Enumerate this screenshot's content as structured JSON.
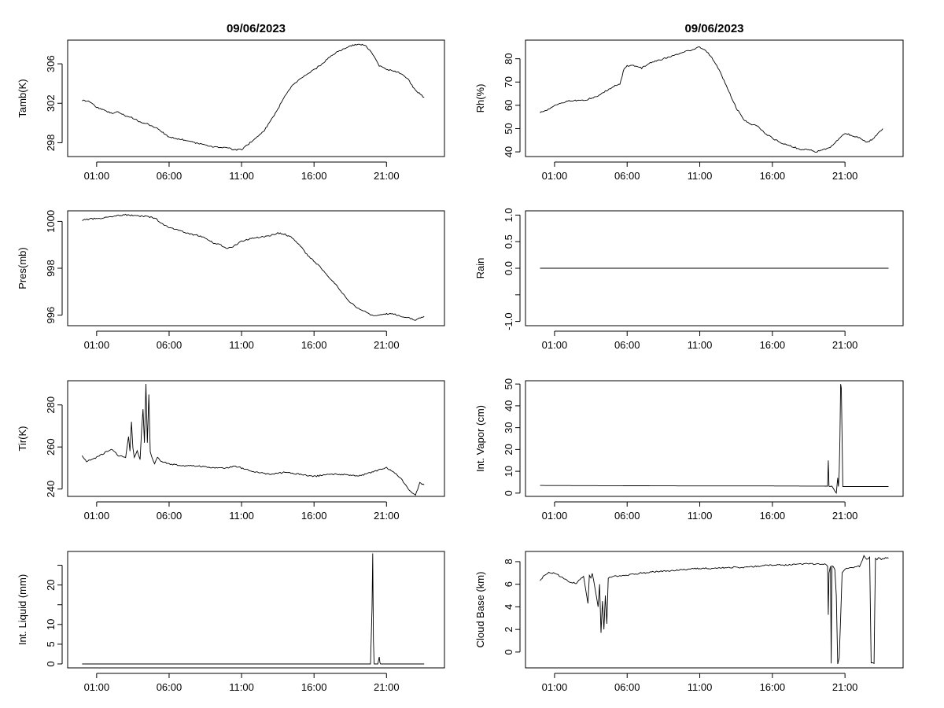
{
  "titles": [
    "09/06/2023",
    "09/06/2023"
  ],
  "x_ticks": [
    "01:00",
    "06:00",
    "11:00",
    "16:00",
    "21:00"
  ],
  "chart_data": [
    {
      "type": "line",
      "id": "tamb",
      "ylabel": "Tamb(K)",
      "ylim": [
        296.6,
        308.4
      ],
      "yticks": [
        298,
        302,
        306
      ],
      "xlim": [
        -1.0,
        25.0
      ],
      "xrange": [
        0.0,
        23.6
      ],
      "series": [
        {
          "x": [
            0.0,
            0.5,
            1.0,
            1.5,
            2.0,
            2.5,
            3.0,
            3.5,
            4.0,
            4.5,
            5.0,
            5.5,
            6.0,
            6.5,
            7.0,
            7.5,
            8.0,
            8.5,
            9.0,
            9.5,
            10.0,
            10.5,
            11.0,
            11.5,
            12.0,
            12.5,
            13.0,
            13.5,
            14.0,
            14.5,
            15.0,
            15.5,
            16.0,
            16.5,
            17.0,
            17.5,
            18.0,
            18.5,
            19.0,
            19.5,
            20.0,
            20.5,
            21.0,
            21.5,
            22.0,
            22.5,
            23.0,
            23.6
          ],
          "y": [
            302.3,
            302.2,
            301.6,
            301.3,
            301.0,
            301.1,
            300.7,
            300.5,
            300.1,
            299.9,
            299.6,
            299.1,
            298.6,
            298.4,
            298.3,
            298.1,
            297.9,
            297.8,
            297.6,
            297.5,
            297.5,
            297.3,
            297.3,
            297.9,
            298.5,
            299.1,
            300.2,
            301.4,
            302.8,
            303.8,
            304.4,
            304.9,
            305.4,
            305.9,
            306.6,
            307.1,
            307.5,
            307.8,
            308.0,
            307.9,
            307.1,
            305.8,
            305.4,
            305.3,
            305.0,
            304.4,
            303.3,
            302.6
          ]
        }
      ]
    },
    {
      "type": "line",
      "id": "rh",
      "ylabel": "Rh(%)",
      "ylim": [
        38,
        88
      ],
      "yticks": [
        40,
        50,
        60,
        70,
        80
      ],
      "xlim": [
        -1.0,
        25.0
      ],
      "xrange": [
        0.0,
        23.6
      ],
      "series": [
        {
          "x": [
            0.0,
            0.5,
            1.0,
            1.5,
            2.0,
            2.5,
            3.0,
            3.5,
            4.0,
            4.5,
            5.0,
            5.5,
            5.8,
            6.0,
            6.5,
            7.0,
            7.5,
            8.0,
            8.5,
            9.0,
            9.5,
            10.0,
            10.5,
            11.0,
            11.5,
            12.0,
            12.5,
            13.0,
            13.5,
            14.0,
            14.5,
            15.0,
            15.5,
            16.0,
            16.5,
            17.0,
            17.5,
            18.0,
            18.5,
            19.0,
            19.5,
            20.0,
            20.5,
            21.0,
            21.5,
            22.0,
            22.5,
            23.0,
            23.6
          ],
          "y": [
            57,
            58,
            60,
            61,
            62,
            62,
            62,
            63,
            64,
            66,
            68,
            69,
            76,
            77,
            77,
            76,
            78,
            79,
            80,
            81,
            82,
            83,
            84,
            85,
            83,
            79,
            73,
            66,
            59,
            54,
            52,
            51,
            48,
            46,
            44,
            43,
            42,
            41,
            41,
            40,
            41,
            42,
            45,
            48,
            47,
            46,
            44,
            46,
            50
          ]
        }
      ]
    },
    {
      "type": "line",
      "id": "pres",
      "ylabel": "Pres(mb)",
      "ylim": [
        995.55,
        1000.45
      ],
      "yticks": [
        996,
        998,
        1000
      ],
      "xlim": [
        -1.0,
        25.0
      ],
      "xrange": [
        0.0,
        23.6
      ],
      "series": [
        {
          "x": [
            0.0,
            0.5,
            1.0,
            1.5,
            2.0,
            2.5,
            3.0,
            3.5,
            4.0,
            4.5,
            5.0,
            5.5,
            6.0,
            6.5,
            7.0,
            7.5,
            8.0,
            8.5,
            9.0,
            9.5,
            10.0,
            10.5,
            11.0,
            11.5,
            12.0,
            12.5,
            13.0,
            13.5,
            14.0,
            14.5,
            15.0,
            15.5,
            16.0,
            16.5,
            17.0,
            17.5,
            18.0,
            18.5,
            19.0,
            19.5,
            20.0,
            20.5,
            21.0,
            21.5,
            22.0,
            22.5,
            23.0,
            23.6
          ],
          "y": [
            1000.05,
            1000.1,
            1000.12,
            1000.15,
            1000.2,
            1000.25,
            1000.28,
            1000.25,
            1000.22,
            1000.2,
            1000.15,
            999.9,
            999.75,
            999.65,
            999.55,
            999.45,
            999.4,
            999.3,
            999.1,
            999.0,
            998.85,
            998.95,
            999.15,
            999.25,
            999.3,
            999.35,
            999.4,
            999.5,
            999.45,
            999.3,
            999.0,
            998.6,
            998.3,
            998.0,
            997.65,
            997.3,
            996.9,
            996.55,
            996.3,
            996.15,
            996.0,
            996.0,
            996.05,
            996.05,
            995.95,
            995.9,
            995.8,
            995.95
          ]
        }
      ]
    },
    {
      "type": "line",
      "id": "rain",
      "ylabel": "Rain",
      "ylim": [
        -1.08,
        1.08
      ],
      "yticks": [
        -1.0,
        -0.5,
        0.0,
        0.5,
        1.0
      ],
      "ytick_labels": [
        "-1.0",
        "",
        "0.0",
        "0.5",
        "1.0"
      ],
      "xlim": [
        -1.0,
        25.0
      ],
      "xrange": [
        0.0,
        24.0
      ],
      "series": [
        {
          "x": [
            0.0,
            24.0
          ],
          "y": [
            0.0,
            0.0
          ]
        }
      ]
    },
    {
      "type": "line",
      "id": "tir",
      "ylabel": "Tir(K)",
      "ylim": [
        236.5,
        291.5
      ],
      "yticks": [
        240,
        260,
        280
      ],
      "xlim": [
        -1.0,
        25.0
      ],
      "xrange": [
        0.0,
        23.6
      ],
      "series": [
        {
          "x": [
            0.0,
            0.3,
            0.6,
            1.0,
            1.5,
            2.0,
            2.5,
            3.0,
            3.2,
            3.3,
            3.4,
            3.5,
            3.6,
            3.8,
            4.0,
            4.1,
            4.2,
            4.3,
            4.4,
            4.5,
            4.6,
            4.7,
            4.8,
            5.0,
            5.2,
            5.5,
            6.0,
            7.0,
            8.0,
            9.0,
            10.0,
            10.5,
            11.0,
            12.0,
            13.0,
            14.0,
            15.0,
            16.0,
            17.0,
            18.0,
            19.0,
            20.0,
            21.0,
            21.5,
            22.0,
            22.5,
            23.0,
            23.3,
            23.6
          ],
          "y": [
            256,
            253,
            254,
            255,
            257,
            259,
            256,
            255,
            265,
            258,
            272,
            260,
            255,
            258,
            254,
            268,
            278,
            262,
            290,
            262,
            285,
            258,
            255,
            252,
            255,
            253,
            252,
            251,
            251,
            250,
            250,
            251,
            250,
            248,
            247,
            248,
            247,
            246,
            247,
            247,
            246,
            248,
            250,
            248,
            245,
            240,
            237,
            243,
            242
          ]
        }
      ]
    },
    {
      "type": "line",
      "id": "vapor",
      "ylabel": "Int. Vapor (cm)",
      "ylim": [
        -1.5,
        51.5
      ],
      "yticks": [
        0,
        10,
        20,
        30,
        40,
        50
      ],
      "xlim": [
        -1.0,
        25.0
      ],
      "xrange": [
        0.0,
        24.0
      ],
      "series": [
        {
          "x": [
            0.0,
            5.0,
            10.0,
            15.0,
            19.8,
            19.85,
            19.9,
            19.95,
            20.1,
            20.3,
            20.4,
            20.5,
            20.55,
            20.6,
            20.65,
            20.7,
            20.75,
            20.85,
            21.0,
            21.5,
            22.0,
            23.0,
            24.0
          ],
          "y": [
            3.5,
            3.4,
            3.3,
            3.3,
            3.2,
            15,
            3.2,
            3.0,
            3.2,
            1.0,
            0.0,
            7,
            3,
            10,
            25,
            50,
            48,
            3,
            3,
            3,
            3,
            3,
            3
          ]
        }
      ]
    },
    {
      "type": "line",
      "id": "liquid",
      "ylabel": "Int. Liquid (mm)",
      "ylim": [
        -1.0,
        28.5
      ],
      "yticks": [
        0,
        5,
        10,
        15,
        20,
        25
      ],
      "ytick_labels": [
        "0",
        "5",
        "10",
        "",
        "20",
        ""
      ],
      "xlim": [
        -1.0,
        25.0
      ],
      "xrange": [
        0.0,
        23.6
      ],
      "series": [
        {
          "x": [
            0.0,
            10.0,
            19.9,
            20.0,
            20.05,
            20.1,
            20.15,
            20.4,
            20.5,
            20.55,
            20.6,
            21.0,
            23.6
          ],
          "y": [
            0,
            0,
            0,
            14,
            28,
            6,
            0,
            0,
            1.8,
            0.3,
            0,
            0,
            0
          ]
        }
      ]
    },
    {
      "type": "line",
      "id": "cloud",
      "ylabel": "Cloud Base (km)",
      "ylim": [
        -1.4,
        8.9
      ],
      "yticks": [
        0,
        2,
        4,
        6,
        8
      ],
      "xlim": [
        -1.0,
        25.0
      ],
      "xrange": [
        0.0,
        24.0
      ],
      "series": [
        {
          "x": [
            0.0,
            0.3,
            0.6,
            1.0,
            1.5,
            2.0,
            2.5,
            3.0,
            3.3,
            3.4,
            3.5,
            3.6,
            3.8,
            4.0,
            4.1,
            4.2,
            4.3,
            4.4,
            4.5,
            4.6,
            4.7,
            4.8,
            5.0,
            6.0,
            7.0,
            8.0,
            9.0,
            10.0,
            11.0,
            12.0,
            13.0,
            14.0,
            15.0,
            16.0,
            17.0,
            18.0,
            19.0,
            19.6,
            19.8,
            19.85,
            19.9,
            20.0,
            20.05,
            20.1,
            20.2,
            20.3,
            20.4,
            20.5,
            20.6,
            20.7,
            20.8,
            20.9,
            21.0,
            21.1,
            21.5,
            22.0,
            22.2,
            22.3,
            22.4,
            22.5,
            22.7,
            22.8,
            22.9,
            23.0,
            23.05,
            23.1,
            23.2,
            23.3,
            23.5,
            23.7,
            24.0
          ],
          "y": [
            6.3,
            6.8,
            7.0,
            7.0,
            6.6,
            6.2,
            6.1,
            6.7,
            4.3,
            6.8,
            6.5,
            7.0,
            5.5,
            4.0,
            6.0,
            1.7,
            4.5,
            2.0,
            5.0,
            2.5,
            6.5,
            6.6,
            6.7,
            6.8,
            7.0,
            7.1,
            7.2,
            7.3,
            7.4,
            7.4,
            7.5,
            7.5,
            7.6,
            7.7,
            7.7,
            7.8,
            7.8,
            7.8,
            7.6,
            3.3,
            7.0,
            7.6,
            -1.0,
            7.6,
            7.5,
            7.3,
            5.0,
            -1.0,
            -0.5,
            3.0,
            7.0,
            7.2,
            7.3,
            7.4,
            7.5,
            7.6,
            8.1,
            8.5,
            8.3,
            8.2,
            8.4,
            -1.0,
            -1.0,
            -1.0,
            4.0,
            8.3,
            8.2,
            8.4,
            8.2,
            8.3,
            8.3
          ]
        }
      ]
    }
  ]
}
